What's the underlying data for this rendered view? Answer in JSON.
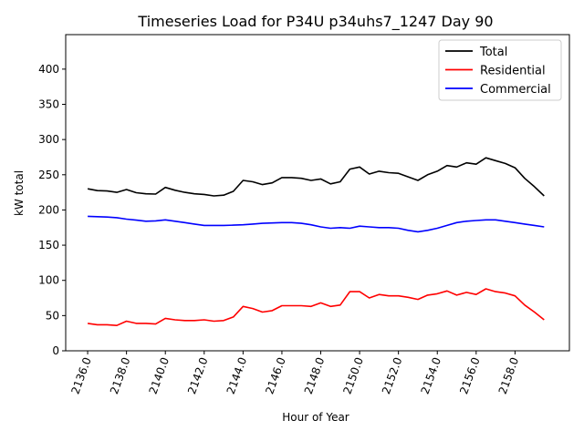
{
  "chart_data": {
    "type": "line",
    "title": "Timeseries Load for P34U p34uhs7_1247  Day 90",
    "xlabel": "Hour of Year",
    "ylabel": "kW total",
    "xlim": [
      2134.87,
      2160.8
    ],
    "ylim": [
      0,
      449
    ],
    "x_start": 2136,
    "x_step": 0.5,
    "xticks": [
      "2136.0",
      "2138.0",
      "2140.0",
      "2142.0",
      "2144.0",
      "2146.0",
      "2148.0",
      "2150.0",
      "2152.0",
      "2154.0",
      "2156.0",
      "2158.0"
    ],
    "xtick_values": [
      2136,
      2138,
      2140,
      2142,
      2144,
      2146,
      2148,
      2150,
      2152,
      2154,
      2156,
      2158
    ],
    "yticks": [
      "0",
      "50",
      "100",
      "150",
      "200",
      "250",
      "300",
      "350",
      "400"
    ],
    "ytick_values": [
      0,
      50,
      100,
      150,
      200,
      250,
      300,
      350,
      400
    ],
    "grid": false,
    "legend_position": "top-right",
    "series": [
      {
        "name": "Total",
        "color": "#000000",
        "values": [
          230,
          227.5,
          227,
          225,
          229,
          224.5,
          223,
          222.5,
          232,
          228,
          225,
          223,
          222,
          220,
          221,
          226.5,
          242,
          240,
          236,
          238.5,
          246,
          246,
          245,
          242,
          244,
          237,
          240,
          258,
          261,
          251,
          255,
          253,
          252,
          247,
          242,
          250,
          255,
          263,
          261,
          267,
          265,
          274,
          270,
          266,
          260,
          245,
          233,
          220
        ]
      },
      {
        "name": "Residential",
        "color": "#ff0000",
        "values": [
          39,
          37,
          37,
          36,
          42,
          39,
          39,
          38,
          46,
          44,
          43,
          43,
          44,
          42,
          43,
          48,
          63,
          60,
          55,
          57,
          64,
          64,
          64,
          63,
          68,
          63,
          65,
          84,
          84,
          75,
          80,
          78,
          78,
          76,
          73,
          79,
          81,
          85,
          79,
          83,
          80,
          88,
          84,
          82,
          78,
          65,
          55,
          44
        ]
      },
      {
        "name": "Commercial",
        "color": "#0000ff",
        "values": [
          191,
          190.5,
          190,
          189,
          187,
          185.5,
          184,
          184.5,
          186,
          184,
          182,
          180,
          178,
          178,
          178,
          178.5,
          179,
          180,
          181,
          181.5,
          182,
          182,
          181,
          179,
          176,
          174,
          175,
          174,
          177,
          176,
          175,
          175,
          174,
          171,
          169,
          171,
          174,
          178,
          182,
          184,
          185,
          186,
          186,
          184,
          182,
          180,
          178,
          176
        ]
      }
    ]
  }
}
